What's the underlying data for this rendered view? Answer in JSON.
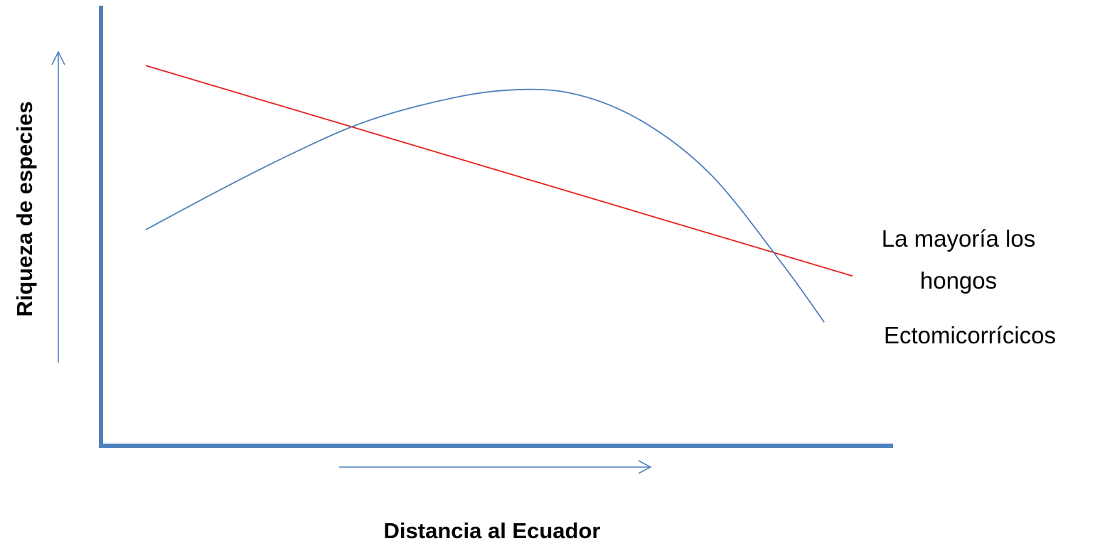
{
  "chart_data": {
    "type": "line",
    "title": "",
    "xlabel": "Distancia al Ecuador",
    "ylabel": "Riqueza de especies",
    "xlim": [
      0,
      100
    ],
    "ylim": [
      0,
      100
    ],
    "grid": false,
    "series": [
      {
        "name": "La mayoría los hongos",
        "color": "#e8201c",
        "x": [
          0,
          100
        ],
        "y": [
          90,
          40
        ]
      },
      {
        "name": "Ectomicorrícicos",
        "color": "#4f81bd",
        "x": [
          0,
          10,
          20,
          30,
          40,
          50,
          60,
          70,
          80,
          90,
          96
        ],
        "y": [
          51,
          60,
          68.5,
          76,
          81,
          84,
          83.5,
          77,
          64,
          43,
          29
        ]
      }
    ],
    "annotations": {
      "label_1_line_1": "La mayoría los",
      "label_1_line_2": "hongos",
      "label_2": "Ectomicorrícicos"
    },
    "axis_color": "#4f81bd",
    "arrow_color": "#4f81bd"
  }
}
